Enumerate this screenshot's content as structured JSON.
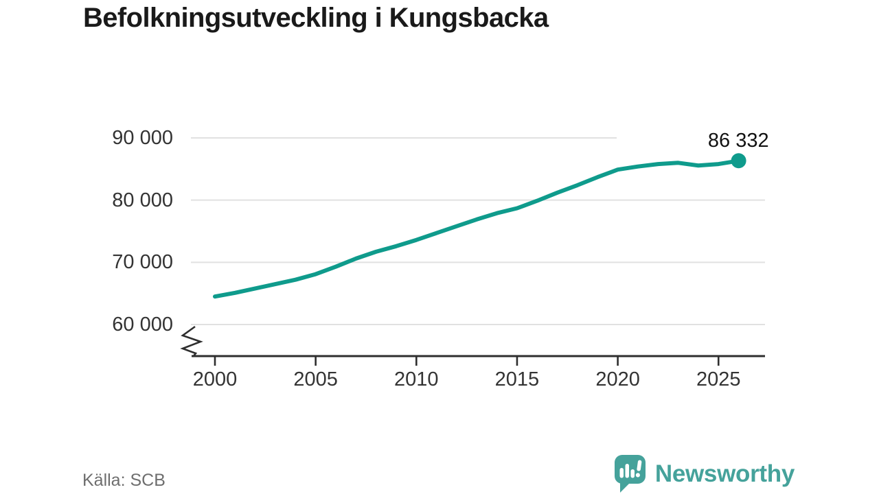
{
  "title": "Befolkningsutveckling i Kungsbacka",
  "source": "Källa: SCB",
  "brand": {
    "name": "Newsworthy",
    "color": "#45a29b"
  },
  "colors": {
    "line": "#0f9b8c",
    "grid": "#e1e1e1",
    "axis": "#2e2e2e",
    "tick_text": "#333333",
    "title_text": "#1a1a1a",
    "source_text": "#6e6e6e"
  },
  "chart_data": {
    "type": "line",
    "title": "Befolkningsutveckling i Kungsbacka",
    "x": [
      2000,
      2001,
      2002,
      2003,
      2004,
      2005,
      2006,
      2007,
      2008,
      2009,
      2010,
      2011,
      2012,
      2013,
      2014,
      2015,
      2016,
      2017,
      2018,
      2019,
      2020,
      2021,
      2022,
      2023,
      2024,
      2025,
      2026
    ],
    "values": [
      64500,
      65100,
      65800,
      66500,
      67200,
      68100,
      69300,
      70600,
      71700,
      72600,
      73600,
      74700,
      75800,
      76900,
      77900,
      78700,
      79900,
      81200,
      82400,
      83700,
      84900,
      85400,
      85800,
      86000,
      85550,
      85800,
      86332
    ],
    "end_label": "86 332",
    "end_value": 86332,
    "x_ticks": [
      {
        "v": 2000,
        "label": "2000"
      },
      {
        "v": 2005,
        "label": "2005"
      },
      {
        "v": 2010,
        "label": "2010"
      },
      {
        "v": 2015,
        "label": "2015"
      },
      {
        "v": 2020,
        "label": "2020"
      },
      {
        "v": 2025,
        "label": "2025"
      }
    ],
    "y_ticks": [
      {
        "v": 60000,
        "label": "60 000"
      },
      {
        "v": 70000,
        "label": "70 000"
      },
      {
        "v": 80000,
        "label": "80 000"
      },
      {
        "v": 90000,
        "label": "90 000"
      }
    ],
    "ylim": [
      60000,
      90000
    ],
    "axis_break": true,
    "grid": true,
    "legend": false
  }
}
